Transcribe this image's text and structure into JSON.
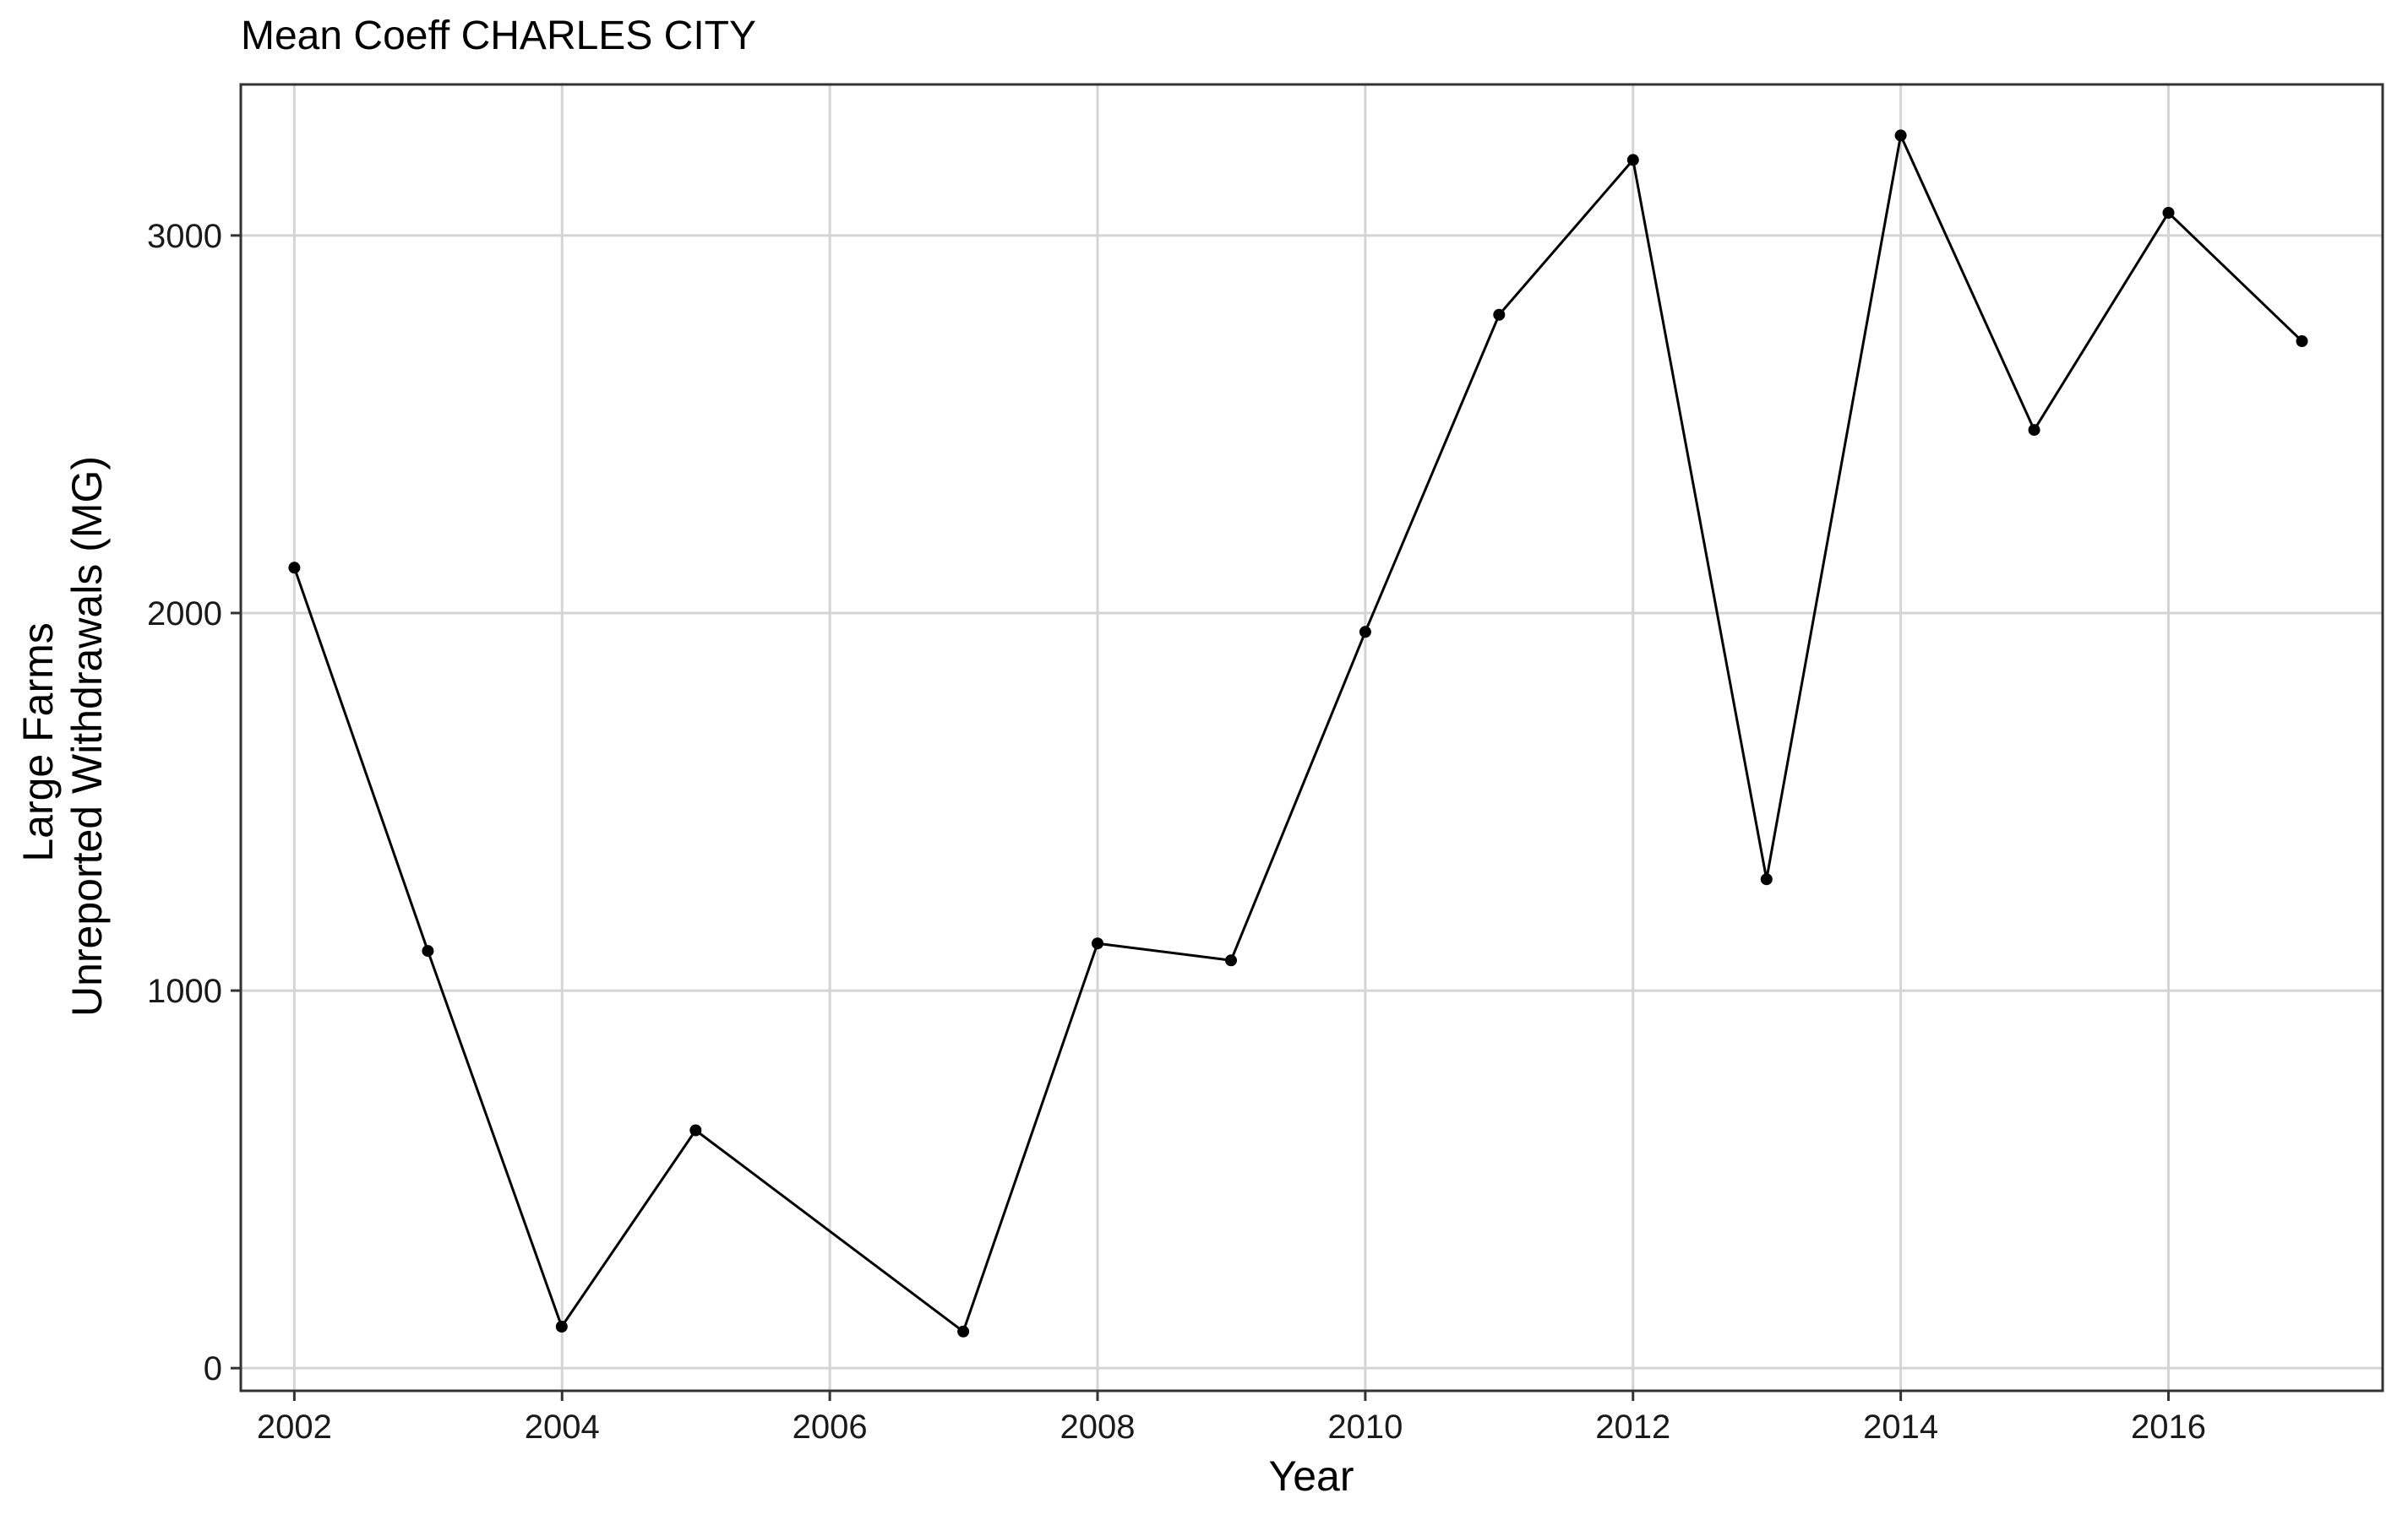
{
  "chart_data": {
    "type": "line",
    "title": "Mean Coeff CHARLES CITY",
    "xlabel": "Year",
    "ylabel": [
      "Large Farms",
      "Unreported Withdrawals (MG)"
    ],
    "xlim": [
      2001.6,
      2017.6
    ],
    "ylim": [
      -60,
      3400
    ],
    "x_ticks": [
      2002,
      2004,
      2006,
      2008,
      2010,
      2012,
      2014,
      2016
    ],
    "y_ticks": [
      0,
      1000,
      2000,
      3000
    ],
    "grid": true,
    "series": [
      {
        "color": "#000000",
        "points": [
          {
            "x": "2002-01-01",
            "y": 2120
          },
          {
            "x": "2002-12-31",
            "y": 1105
          },
          {
            "x": "2003-12-31",
            "y": 110
          },
          {
            "x": "2004-12-31",
            "y": 630
          },
          {
            "x": "2006-12-31",
            "y": 97
          },
          {
            "x": "2008-01-01",
            "y": 1125
          },
          {
            "x": "2008-12-31",
            "y": 1080
          },
          {
            "x": "2010-01-01",
            "y": 1950
          },
          {
            "x": "2011-01-01",
            "y": 2790
          },
          {
            "x": "2012-01-01",
            "y": 3200
          },
          {
            "x": "2012-12-31",
            "y": 1295
          },
          {
            "x": "2014-01-01",
            "y": 3265
          },
          {
            "x": "2014-12-31",
            "y": 2485
          },
          {
            "x": "2016-01-01",
            "y": 3060
          },
          {
            "x": "2016-12-31",
            "y": 2720
          }
        ]
      }
    ]
  }
}
